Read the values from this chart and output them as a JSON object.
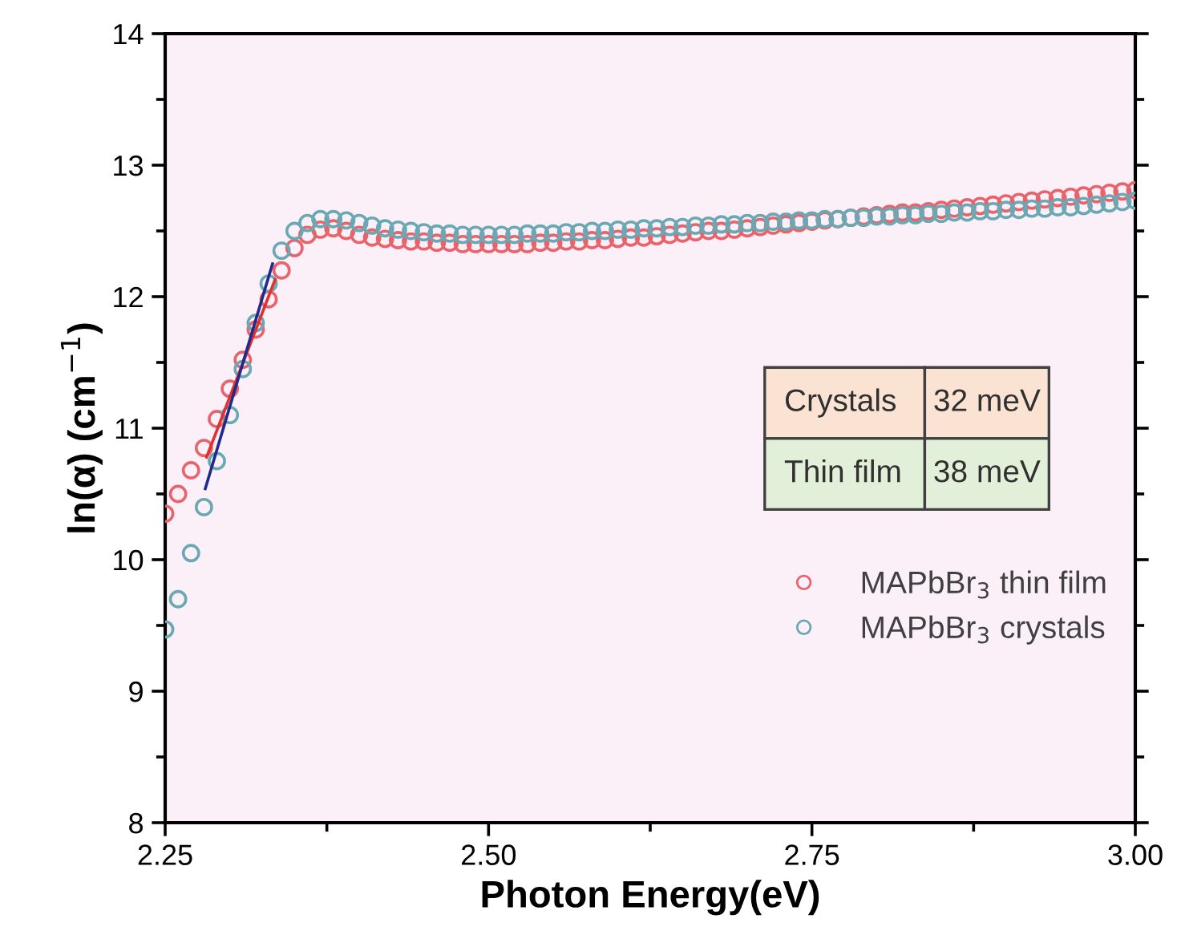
{
  "chart_data": {
    "type": "scatter",
    "xlabel": "Photon Energy(eV)",
    "ylabel": "ln(α) (cm$^{−1}$)",
    "x": [
      2.25,
      2.26,
      2.27,
      2.28,
      2.29,
      2.3,
      2.31,
      2.32,
      2.33,
      2.34,
      2.35,
      2.36,
      2.37,
      2.38,
      2.39,
      2.4,
      2.41,
      2.42,
      2.43,
      2.44,
      2.45,
      2.46,
      2.47,
      2.48,
      2.49,
      2.5,
      2.51,
      2.52,
      2.53,
      2.54,
      2.55,
      2.56,
      2.57,
      2.58,
      2.59,
      2.6,
      2.61,
      2.62,
      2.63,
      2.64,
      2.65,
      2.66,
      2.67,
      2.68,
      2.69,
      2.7,
      2.71,
      2.72,
      2.73,
      2.74,
      2.75,
      2.76,
      2.77,
      2.78,
      2.79,
      2.8,
      2.81,
      2.82,
      2.83,
      2.84,
      2.85,
      2.86,
      2.87,
      2.88,
      2.89,
      2.9,
      2.91,
      2.92,
      2.93,
      2.94,
      2.95,
      2.96,
      2.97,
      2.98,
      2.99,
      3.0
    ],
    "series": [
      {
        "name": "MAPbBr$_{3}$ thin film",
        "color": "#e8636b",
        "values": [
          10.35,
          10.5,
          10.68,
          10.85,
          11.07,
          11.3,
          11.52,
          11.75,
          11.98,
          12.2,
          12.37,
          12.47,
          12.51,
          12.52,
          12.5,
          12.47,
          12.45,
          12.44,
          12.43,
          12.42,
          12.42,
          12.41,
          12.41,
          12.4,
          12.4,
          12.4,
          12.4,
          12.4,
          12.4,
          12.41,
          12.41,
          12.42,
          12.42,
          12.43,
          12.43,
          12.44,
          12.45,
          12.45,
          12.46,
          12.47,
          12.48,
          12.49,
          12.5,
          12.5,
          12.51,
          12.52,
          12.53,
          12.54,
          12.55,
          12.56,
          12.57,
          12.58,
          12.59,
          12.6,
          12.61,
          12.62,
          12.63,
          12.64,
          12.64,
          12.65,
          12.66,
          12.67,
          12.68,
          12.69,
          12.7,
          12.71,
          12.72,
          12.73,
          12.74,
          12.75,
          12.76,
          12.77,
          12.78,
          12.79,
          12.8,
          12.81
        ]
      },
      {
        "name": "MAPbBr$_{3}$ crystals",
        "color": "#6aa8b4",
        "values": [
          9.47,
          9.7,
          10.05,
          10.4,
          10.75,
          11.1,
          11.45,
          11.8,
          12.1,
          12.35,
          12.5,
          12.56,
          12.59,
          12.59,
          12.58,
          12.56,
          12.54,
          12.52,
          12.51,
          12.5,
          12.49,
          12.48,
          12.48,
          12.47,
          12.47,
          12.47,
          12.47,
          12.47,
          12.48,
          12.48,
          12.48,
          12.49,
          12.49,
          12.5,
          12.5,
          12.51,
          12.51,
          12.52,
          12.52,
          12.53,
          12.53,
          12.54,
          12.54,
          12.55,
          12.55,
          12.56,
          12.56,
          12.57,
          12.57,
          12.58,
          12.58,
          12.59,
          12.59,
          12.6,
          12.6,
          12.61,
          12.61,
          12.62,
          12.62,
          12.63,
          12.63,
          12.64,
          12.64,
          12.65,
          12.65,
          12.66,
          12.66,
          12.67,
          12.67,
          12.68,
          12.68,
          12.69,
          12.7,
          12.71,
          12.72,
          12.73
        ]
      },
      {
        "type": "line",
        "marker": "none",
        "color": "#e03030",
        "x": [
          2.282,
          2.335
        ],
        "values": [
          10.78,
          12.13
        ]
      },
      {
        "type": "line",
        "marker": "none",
        "color": "#1f2a8c",
        "x": [
          2.281,
          2.333
        ],
        "values": [
          10.54,
          12.25
        ]
      }
    ],
    "xlim": [
      2.25,
      3.0
    ],
    "xticks": [
      2.25,
      {
        "value": 2.5,
        "label": "2.50"
      },
      2.75,
      {
        "value": 3.0,
        "label": "3.00"
      }
    ],
    "ylim": [
      8,
      14
    ],
    "yticks": [
      8,
      9,
      10,
      11,
      12,
      13,
      14
    ],
    "marker": "circle",
    "legend": "bottom right",
    "grid": false,
    "annotations": [
      "Crystals",
      "32 meV",
      "Thin film",
      "38 meV"
    ]
  }
}
